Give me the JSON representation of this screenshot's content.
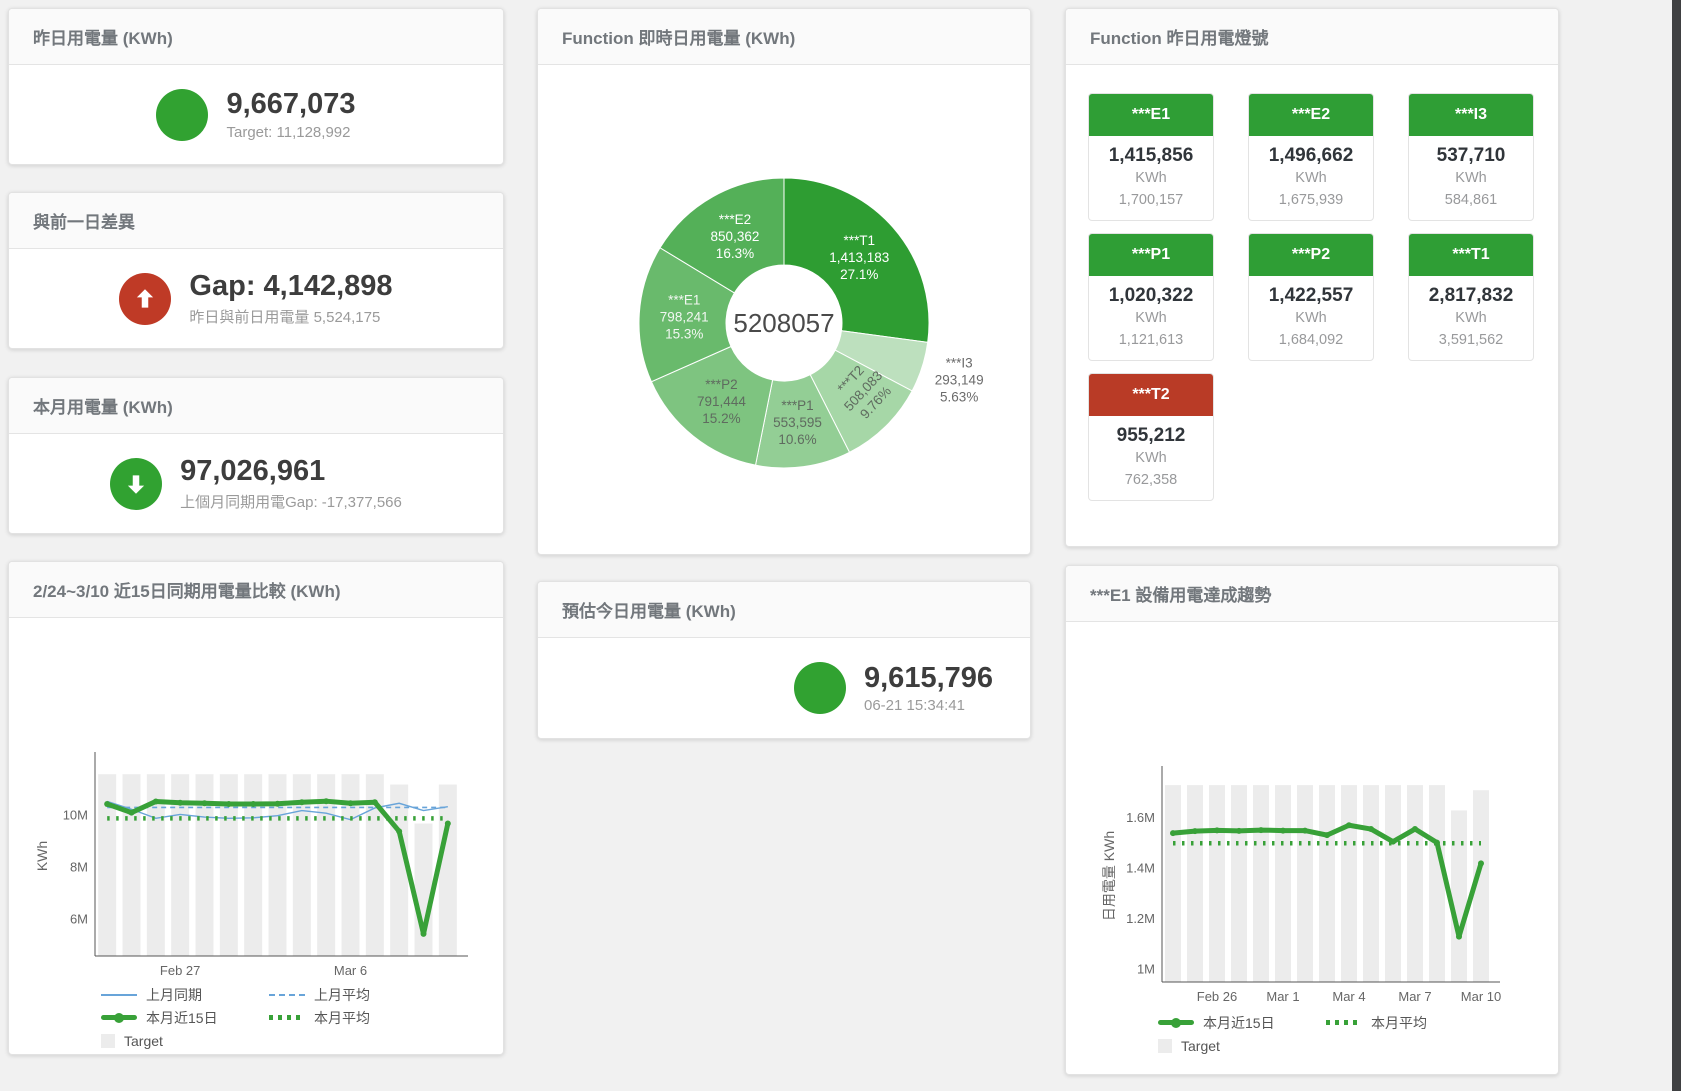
{
  "colors": {
    "accent_green": "#31a231",
    "accent_red": "#bf3a26",
    "tile_green": "#2f9e35",
    "tile_red": "#b93b26",
    "bar_gray": "#ececec",
    "line_green": "#38a138",
    "line_blue": "#68a4d9"
  },
  "cards": {
    "yesterday": {
      "title": "昨日用電量 (KWh)",
      "value": "9,667,073",
      "subtext": "Target: 11,128,992"
    },
    "day_gap": {
      "title": "與前一日差異",
      "value": "Gap: 4,142,898",
      "subtext": "昨日與前日用電量 5,524,175"
    },
    "month": {
      "title": "本月用電量 (KWh)",
      "value": "97,026,961",
      "subtext": "上個月同期用電Gap: -17,377,566"
    },
    "compare": {
      "title": "2/24~3/10 近15日同期用電量比較 (KWh)"
    },
    "realtime": {
      "title": "Function 即時日用電量 (KWh)"
    },
    "forecast": {
      "title": "預估今日用電量 (KWh)",
      "value": "9,615,796",
      "subtext": "06-21 15:34:41"
    },
    "lights": {
      "title": "Function 昨日用電燈號",
      "unit": "KWh",
      "tiles": [
        {
          "name": "***E1",
          "value": "1,415,856",
          "target": "1,700,157",
          "status": "ok"
        },
        {
          "name": "***E2",
          "value": "1,496,662",
          "target": "1,675,939",
          "status": "ok"
        },
        {
          "name": "***I3",
          "value": "537,710",
          "target": "584,861",
          "status": "ok"
        },
        {
          "name": "***P1",
          "value": "1,020,322",
          "target": "1,121,613",
          "status": "ok"
        },
        {
          "name": "***P2",
          "value": "1,422,557",
          "target": "1,684,092",
          "status": "ok"
        },
        {
          "name": "***T1",
          "value": "2,817,832",
          "target": "3,591,562",
          "status": "ok"
        },
        {
          "name": "***T2",
          "value": "955,212",
          "target": "762,358",
          "status": "alert"
        }
      ]
    },
    "trend": {
      "title": "***E1 設備用電達成趨勢"
    }
  },
  "chart_data": [
    {
      "type": "pie",
      "title": "Function 即時日用電量 (KWh)",
      "center_label": "5208057",
      "segments": [
        {
          "name": "***T1",
          "value": 1413183,
          "value_label": "1,413,183",
          "pct": 27.1,
          "pct_label": "27.1%",
          "color": "#2e9d32",
          "label_color": "#ffffff"
        },
        {
          "name": "***I3",
          "value": 293149,
          "value_label": "293,149",
          "pct": 5.63,
          "pct_label": "5.63%",
          "color": "#bde0be",
          "label_color": "#6b6b6b",
          "label_outside": true
        },
        {
          "name": "***T2",
          "value": 508083,
          "value_label": "508,083",
          "pct": 9.76,
          "pct_label": "9.76%",
          "color": "#a6d7a7",
          "label_color": "#5f6b5f",
          "label_rotate": -47
        },
        {
          "name": "***P1",
          "value": 553595,
          "value_label": "553,595",
          "pct": 10.6,
          "pct_label": "10.6%",
          "color": "#93ce95",
          "label_color": "#5f6b5f"
        },
        {
          "name": "***P2",
          "value": 791444,
          "value_label": "791,444",
          "pct": 15.2,
          "pct_label": "15.2%",
          "color": "#7ec480",
          "label_color": "#5f6b5f"
        },
        {
          "name": "***E1",
          "value": 798241,
          "value_label": "798,241",
          "pct": 15.3,
          "pct_label": "15.3%",
          "color": "#69ba6c",
          "label_color": "#f2f7f2"
        },
        {
          "name": "***E2",
          "value": 850362,
          "value_label": "850,362",
          "pct": 16.3,
          "pct_label": "16.3%",
          "color": "#54b058",
          "label_color": "#ffffff"
        }
      ]
    },
    {
      "type": "line",
      "title": "2/24~3/10 近15日同期用電量比較 (KWh)",
      "ylabel": "KWh",
      "ylim": [
        4600000,
        12300000
      ],
      "yticks": [
        {
          "value": 6000000,
          "label": "6M"
        },
        {
          "value": 8000000,
          "label": "8M"
        },
        {
          "value": 10000000,
          "label": "10M"
        }
      ],
      "categories": [
        "Feb 24",
        "Feb 25",
        "Feb 26",
        "Feb 27",
        "Feb 28",
        "Mar 1",
        "Mar 2",
        "Mar 3",
        "Mar 4",
        "Mar 5",
        "Mar 6",
        "Mar 7",
        "Mar 8",
        "Mar 9",
        "Mar 10"
      ],
      "xticks": [
        {
          "index": 3,
          "label": "Feb 27"
        },
        {
          "index": 10,
          "label": "Mar 6"
        }
      ],
      "target": {
        "name": "Target",
        "color": "#ececec",
        "values": [
          11600000,
          11600000,
          11600000,
          11600000,
          11600000,
          11600000,
          11600000,
          11600000,
          11600000,
          11600000,
          11600000,
          11600000,
          11200000,
          9700000,
          11200000
        ]
      },
      "series": [
        {
          "name": "上月同期",
          "style": "thin",
          "color": "#68a4d9",
          "values": [
            10550000,
            10250000,
            9900000,
            10050000,
            9950000,
            9900000,
            9920000,
            10000000,
            10200000,
            10100000,
            9850000,
            10300000,
            10480000,
            10200000,
            10350000
          ]
        },
        {
          "name": "上月平均",
          "style": "dashed",
          "color": "#68a4d9",
          "constant": 10320000
        },
        {
          "name": "本月近15日",
          "style": "thick",
          "color": "#38a138",
          "values": [
            10450000,
            10120000,
            10550000,
            10500000,
            10480000,
            10450000,
            10450000,
            10460000,
            10520000,
            10560000,
            10480000,
            10520000,
            9400000,
            5450000,
            9700000
          ]
        },
        {
          "name": "本月平均",
          "style": "dotted",
          "color": "#38a138",
          "constant": 9900000
        }
      ]
    },
    {
      "type": "line",
      "title": "***E1 設備用電達成趨勢",
      "ylabel": "日用電量 KWh",
      "ylim": [
        950000,
        1790000
      ],
      "yticks": [
        {
          "value": 1000000,
          "label": "1M"
        },
        {
          "value": 1200000,
          "label": "1.2M"
        },
        {
          "value": 1400000,
          "label": "1.4M"
        },
        {
          "value": 1600000,
          "label": "1.6M"
        }
      ],
      "categories": [
        "Feb 24",
        "Feb 25",
        "Feb 26",
        "Feb 27",
        "Feb 28",
        "Mar 1",
        "Mar 2",
        "Mar 3",
        "Mar 4",
        "Mar 5",
        "Mar 6",
        "Mar 7",
        "Mar 8",
        "Mar 9",
        "Mar 10"
      ],
      "xticks": [
        {
          "index": 2,
          "label": "Feb 26"
        },
        {
          "index": 5,
          "label": "Mar 1"
        },
        {
          "index": 8,
          "label": "Mar 4"
        },
        {
          "index": 11,
          "label": "Mar 7"
        },
        {
          "index": 14,
          "label": "Mar 10"
        }
      ],
      "target": {
        "name": "Target",
        "color": "#ececec",
        "values": [
          1730000,
          1730000,
          1730000,
          1730000,
          1730000,
          1730000,
          1730000,
          1730000,
          1730000,
          1730000,
          1730000,
          1730000,
          1730000,
          1630000,
          1710000
        ]
      },
      "series": [
        {
          "name": "本月近15日",
          "style": "thick",
          "color": "#38a138",
          "values": [
            1540000,
            1548000,
            1551000,
            1549000,
            1552000,
            1550000,
            1550000,
            1532000,
            1571000,
            1556000,
            1506000,
            1556000,
            1502000,
            1130000,
            1420000
          ]
        },
        {
          "name": "本月平均",
          "style": "dotted",
          "color": "#38a138",
          "constant": 1500000
        }
      ]
    }
  ]
}
